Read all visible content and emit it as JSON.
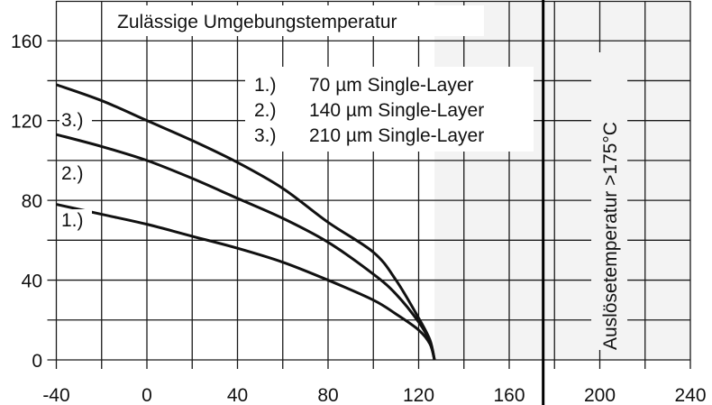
{
  "chart_data": {
    "type": "line",
    "title": "Zulässige Umgebungstemperatur",
    "xlabel": "",
    "ylabel": "",
    "xlim": [
      -40,
      240
    ],
    "ylim": [
      0,
      180
    ],
    "x_ticks": [
      -40,
      0,
      40,
      80,
      120,
      160,
      200,
      240
    ],
    "x_minor_grid": [
      -20,
      20,
      60,
      100,
      140,
      180,
      220
    ],
    "y_ticks": [
      0,
      40,
      80,
      120,
      160
    ],
    "y_minor_grid": [
      20,
      60,
      100,
      140
    ],
    "grid": true,
    "legend": {
      "position": "upper-center",
      "entries": [
        {
          "index": "1.)",
          "label": "70 µm Single-Layer"
        },
        {
          "index": "2.)",
          "label": "140 µm Single-Layer"
        },
        {
          "index": "3.)",
          "label": "210 µm Single-Layer"
        }
      ]
    },
    "series": [
      {
        "name": "1.) 70 µm Single-Layer",
        "curve_label": "1.)",
        "x": [
          -40,
          -20,
          0,
          20,
          40,
          60,
          80,
          100,
          110,
          120,
          125,
          127
        ],
        "y": [
          78,
          73,
          68,
          62,
          56,
          49,
          40,
          30,
          23,
          15,
          8,
          0
        ]
      },
      {
        "name": "2.) 140 µm Single-Layer",
        "curve_label": "2.)",
        "x": [
          -40,
          -20,
          0,
          20,
          40,
          60,
          80,
          100,
          110,
          120,
          125,
          127
        ],
        "y": [
          113,
          107,
          100,
          91,
          81,
          71,
          59,
          43,
          33,
          19,
          9,
          0
        ]
      },
      {
        "name": "3.) 210 µm Single-Layer",
        "curve_label": "3.)",
        "x": [
          -40,
          -20,
          0,
          20,
          40,
          60,
          80,
          100,
          110,
          120,
          125,
          127
        ],
        "y": [
          138,
          130,
          120,
          110,
          99,
          86,
          69,
          54,
          40,
          21,
          10,
          0
        ]
      }
    ],
    "annotations": [
      {
        "text": "Auslösetemperatur >175°C",
        "x": 205,
        "orientation": "vertical"
      },
      {
        "type": "vline",
        "x": 175,
        "style": "thick"
      },
      {
        "type": "shaded_region",
        "x_from": 127,
        "x_to": 240,
        "color": "#f3f3f3"
      }
    ]
  },
  "labels": {
    "title": "Zulässige Umgebungstemperatur",
    "trip_temperature": "Auslösetemperatur >175°C"
  },
  "colors": {
    "line": "#111111",
    "grid": "#1a1a1a",
    "shade": "#f3f3f3",
    "background": "#ffffff"
  }
}
